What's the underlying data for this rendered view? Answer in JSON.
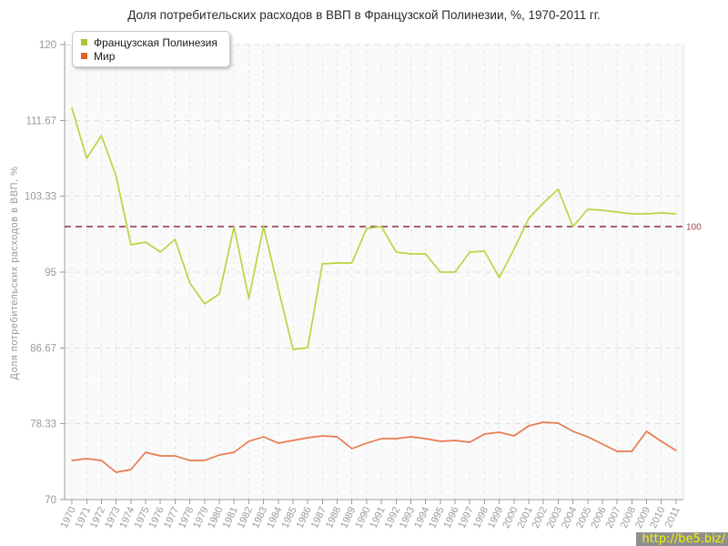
{
  "title": "Доля потребительских расходов в ВВП в Французской Полинезии, %, 1970-2011 гг.",
  "legend": {
    "items": [
      {
        "label": "Французская Полинезия",
        "color": "#a9c52f"
      },
      {
        "label": "Мир",
        "color": "#e2632c"
      }
    ]
  },
  "watermark": {
    "text": "http://be5.biz/",
    "color": "#f5f200",
    "bg": "#8f8f8f"
  },
  "chart_data": {
    "type": "line",
    "title": "Доля потребительских расходов в ВВП в Французской Полинезии, %, 1970-2011 гг.",
    "xlabel": "",
    "ylabel": "Доля потребительских расходов в ВВП, %",
    "ylim": [
      70,
      120
    ],
    "yticks": [
      70,
      78.33,
      86.67,
      95,
      103.33,
      111.67,
      120
    ],
    "ytick_labels": [
      "70",
      "78.33",
      "86.67",
      "95",
      "103.33",
      "111.67",
      "120"
    ],
    "grid": true,
    "legend_position": "top-left",
    "reference_line": {
      "value": 100,
      "label": "100",
      "color": "#8e2c3e",
      "label_color": "#9c4a55",
      "style": "dashed"
    },
    "x": [
      "1970",
      "1971",
      "1972",
      "1973",
      "1974",
      "1975",
      "1976",
      "1977",
      "1978",
      "1979",
      "1980",
      "1981",
      "1982",
      "1983",
      "1984",
      "1985",
      "1986",
      "1987",
      "1988",
      "1989",
      "1990",
      "1991",
      "1992",
      "1993",
      "1994",
      "1995",
      "1996",
      "1997",
      "1998",
      "1999",
      "2000",
      "2001",
      "2002",
      "2003",
      "2004",
      "2005",
      "2006",
      "2007",
      "2008",
      "2009",
      "2010",
      "2011"
    ],
    "series": [
      {
        "name": "Французская Полинезия",
        "color": "#bcd440",
        "values": [
          113.0,
          107.5,
          110.0,
          105.5,
          98.0,
          98.3,
          97.2,
          98.6,
          93.8,
          91.5,
          92.6,
          100.0,
          92.1,
          100.0,
          93.2,
          86.5,
          86.7,
          95.9,
          96.0,
          96.0,
          99.8,
          100.0,
          97.2,
          97.0,
          97.0,
          95.0,
          95.0,
          97.2,
          97.3,
          94.4,
          97.5,
          100.9,
          102.6,
          104.1,
          100.0,
          101.9,
          101.8,
          101.6,
          101.4,
          101.4,
          101.5,
          101.4
        ]
      },
      {
        "name": "Мир",
        "color": "#e87a4e",
        "values": [
          74.3,
          74.5,
          74.3,
          73.0,
          73.3,
          75.2,
          74.8,
          74.8,
          74.3,
          74.3,
          74.9,
          75.2,
          76.4,
          76.9,
          76.2,
          76.5,
          76.8,
          77.0,
          76.9,
          75.6,
          76.2,
          76.7,
          76.7,
          76.9,
          76.7,
          76.4,
          76.5,
          76.3,
          77.2,
          77.4,
          77.0,
          78.1,
          78.5,
          78.4,
          77.5,
          76.9,
          76.1,
          75.3,
          75.3,
          77.5,
          76.4,
          75.4
        ]
      }
    ],
    "plot_colors": {
      "plot_bg": "#fafafa",
      "axis": "#9c9c9c",
      "tick_label": "#9a9a9a",
      "grid_h": "#dfdfdf",
      "grid_v": "#e5e5e5",
      "border_right": "#e2e2e2"
    }
  }
}
